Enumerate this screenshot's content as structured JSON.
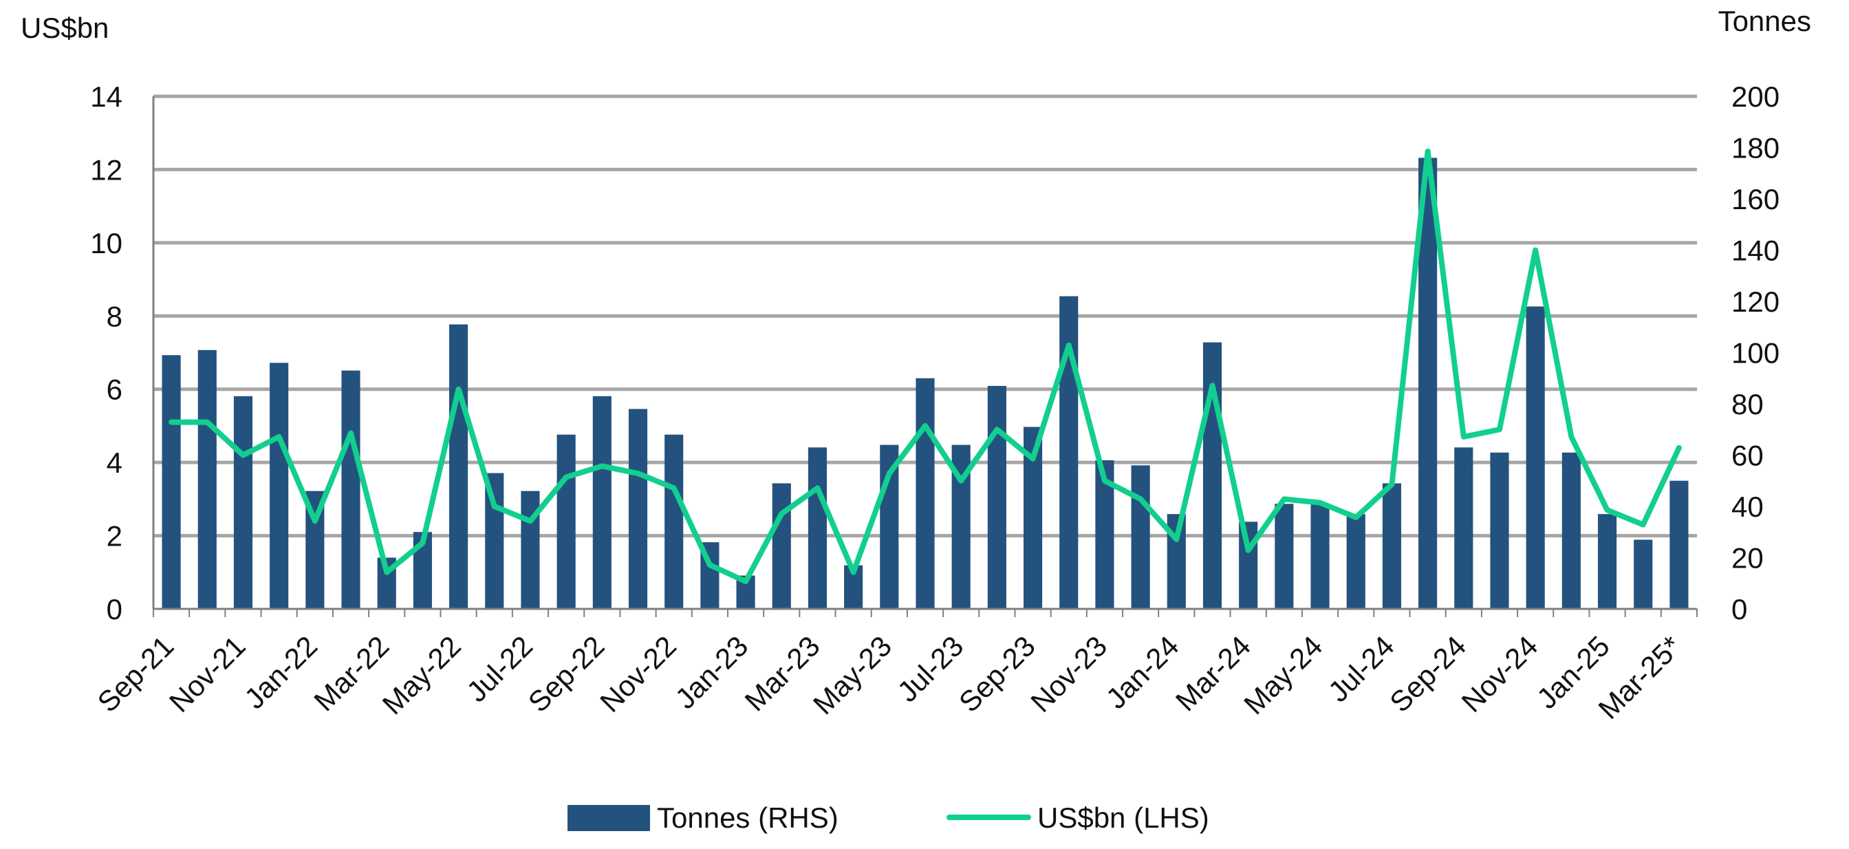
{
  "chart_data": {
    "type": "bar+line",
    "left_axis_unit": "US$bn",
    "right_axis_unit": "Tonnes",
    "left_ylim": [
      0,
      14
    ],
    "right_ylim": [
      0,
      200
    ],
    "left_ticks": [
      "0",
      "2",
      "4",
      "6",
      "8",
      "10",
      "12",
      "14"
    ],
    "right_ticks": [
      "0",
      "20",
      "40",
      "60",
      "80",
      "100",
      "120",
      "140",
      "160",
      "180",
      "200"
    ],
    "grid": true,
    "legend_position": "bottom-center",
    "categories": [
      "Sep-21",
      "Oct-21",
      "Nov-21",
      "Dec-21",
      "Jan-22",
      "Feb-22",
      "Mar-22",
      "Apr-22",
      "May-22",
      "Jun-22",
      "Jul-22",
      "Aug-22",
      "Sep-22",
      "Oct-22",
      "Nov-22",
      "Dec-22",
      "Jan-23",
      "Feb-23",
      "Mar-23",
      "Apr-23",
      "May-23",
      "Jun-23",
      "Jul-23",
      "Aug-23",
      "Sep-23",
      "Oct-23",
      "Nov-23",
      "Dec-23",
      "Jan-24",
      "Feb-24",
      "Mar-24",
      "Apr-24",
      "May-24",
      "Jun-24",
      "Jul-24",
      "Aug-24",
      "Sep-24",
      "Oct-24",
      "Nov-24",
      "Dec-24",
      "Jan-25",
      "Feb-25",
      "Mar-25*"
    ],
    "x_tick_labels": [
      "Sep-21",
      "Nov-21",
      "Jan-22",
      "Mar-22",
      "May-22",
      "Jul-22",
      "Sep-22",
      "Nov-22",
      "Jan-23",
      "Mar-23",
      "May-23",
      "Jul-23",
      "Sep-23",
      "Nov-23",
      "Jan-24",
      "Mar-24",
      "May-24",
      "Jul-24",
      "Sep-24",
      "Nov-24",
      "Jan-25",
      "Mar-25*"
    ],
    "series": [
      {
        "name": "Tonnes (RHS)",
        "type": "bar",
        "axis": "right",
        "color": "#24527E",
        "values": [
          99,
          101,
          83,
          96,
          46,
          93,
          20,
          30,
          111,
          53,
          46,
          68,
          83,
          78,
          68,
          26,
          13,
          49,
          63,
          17,
          64,
          90,
          64,
          87,
          71,
          122,
          58,
          56,
          37,
          104,
          34,
          41,
          41,
          37,
          49,
          176,
          63,
          61,
          118,
          61,
          37,
          27,
          50
        ]
      },
      {
        "name": "US$bn (LHS)",
        "type": "line",
        "axis": "left",
        "color": "#12CF8F",
        "values": [
          5.1,
          5.1,
          4.2,
          4.7,
          2.4,
          4.8,
          1.0,
          1.8,
          6.0,
          2.8,
          2.4,
          3.6,
          3.9,
          3.7,
          3.3,
          1.2,
          0.75,
          2.6,
          3.3,
          1.0,
          3.7,
          5.0,
          3.5,
          4.9,
          4.1,
          7.2,
          3.5,
          3.0,
          1.9,
          6.1,
          1.6,
          3.0,
          2.9,
          2.5,
          3.4,
          12.5,
          4.7,
          4.9,
          9.8,
          4.7,
          2.7,
          2.3,
          4.4
        ]
      }
    ]
  },
  "legend": {
    "bar_label": "Tonnes (RHS)",
    "line_label": "US$bn (LHS)"
  }
}
